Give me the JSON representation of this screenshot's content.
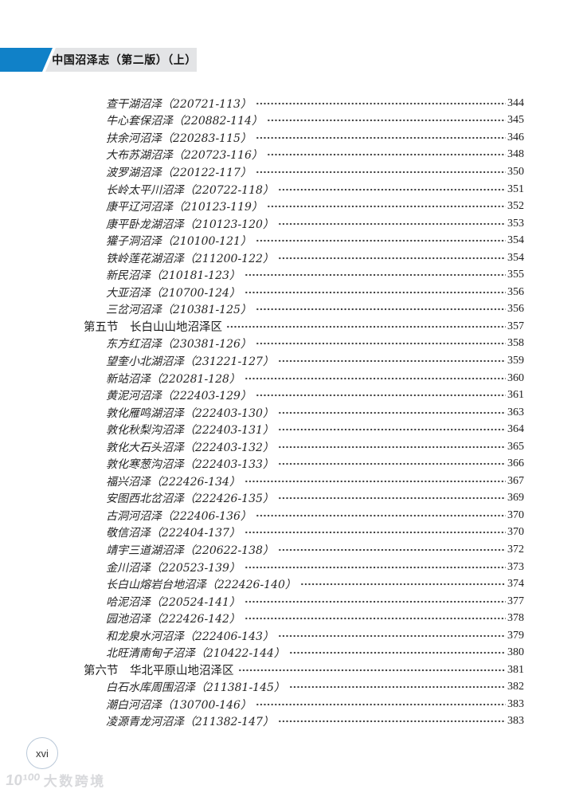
{
  "header": {
    "book_title": "中国沼泽志（第二版）（上）",
    "accent_color": "#1081c8",
    "bar_color": "#e3e4e6"
  },
  "toc_entries": [
    {
      "level": 2,
      "label": "查干湖沼泽（220721-113）",
      "page": "344"
    },
    {
      "level": 2,
      "label": "牛心套保沼泽（220882-114）",
      "page": "345"
    },
    {
      "level": 2,
      "label": "扶余河沼泽（220283-115）",
      "page": "346"
    },
    {
      "level": 2,
      "label": "大布苏湖沼泽（220723-116）",
      "page": "348"
    },
    {
      "level": 2,
      "label": "波罗湖沼泽（220122-117）",
      "page": "350"
    },
    {
      "level": 2,
      "label": "长岭太平川沼泽（220722-118）",
      "page": "351"
    },
    {
      "level": 2,
      "label": "康平辽河沼泽（210123-119）",
      "page": "352"
    },
    {
      "level": 2,
      "label": "康平卧龙湖沼泽（210123-120）",
      "page": "353"
    },
    {
      "level": 2,
      "label": "獾子洞沼泽（210100-121）",
      "page": "354"
    },
    {
      "level": 2,
      "label": "铁岭莲花湖沼泽（211200-122）",
      "page": "354"
    },
    {
      "level": 2,
      "label": "新民沼泽（210181-123）",
      "page": "355"
    },
    {
      "level": 2,
      "label": "大亚沼泽（210700-124）",
      "page": "356"
    },
    {
      "level": 2,
      "label": "三岔河沼泽（210381-125）",
      "page": "356"
    },
    {
      "level": 1,
      "label": "第五节　长白山山地沼泽区",
      "page": "357"
    },
    {
      "level": 2,
      "label": "东方红沼泽（230381-126）",
      "page": "358"
    },
    {
      "level": 2,
      "label": "望奎小北湖沼泽（231221-127）",
      "page": "359"
    },
    {
      "level": 2,
      "label": "新站沼泽（220281-128）",
      "page": "360"
    },
    {
      "level": 2,
      "label": "黄泥河沼泽（222403-129）",
      "page": "361"
    },
    {
      "level": 2,
      "label": "敦化雁鸣湖沼泽（222403-130）",
      "page": "363"
    },
    {
      "level": 2,
      "label": "敦化秋梨沟沼泽（222403-131）",
      "page": "364"
    },
    {
      "level": 2,
      "label": "敦化大石头沼泽（222403-132）",
      "page": "365"
    },
    {
      "level": 2,
      "label": "敦化寒葱沟沼泽（222403-133）",
      "page": "366"
    },
    {
      "level": 2,
      "label": "福兴沼泽（222426-134）",
      "page": "367"
    },
    {
      "level": 2,
      "label": "安图西北岔沼泽（222426-135）",
      "page": "369"
    },
    {
      "level": 2,
      "label": "古洞河沼泽（222406-136）",
      "page": "370"
    },
    {
      "level": 2,
      "label": "敬信沼泽（222404-137）",
      "page": "370"
    },
    {
      "level": 2,
      "label": "靖宇三道湖沼泽（220622-138）",
      "page": "372"
    },
    {
      "level": 2,
      "label": "金川沼泽（220523-139）",
      "page": "373"
    },
    {
      "level": 2,
      "label": "长白山熔岩台地沼泽（222426-140）",
      "page": "374"
    },
    {
      "level": 2,
      "label": "哈泥沼泽（220524-141）",
      "page": "377"
    },
    {
      "level": 2,
      "label": "园池沼泽（222426-142）",
      "page": "378"
    },
    {
      "level": 2,
      "label": "和龙泉水河沼泽（222406-143）",
      "page": "379"
    },
    {
      "level": 2,
      "label": "北旺清南甸子沼泽（210422-144）",
      "page": "380"
    },
    {
      "level": 1,
      "label": "第六节　华北平原山地沼泽区",
      "page": "381"
    },
    {
      "level": 2,
      "label": "白石水库周围沼泽（211381-145）",
      "page": "382"
    },
    {
      "level": 2,
      "label": "潮白河沼泽（130700-146）",
      "page": "383"
    },
    {
      "level": 2,
      "label": "凌源青龙河沼泽（211382-147）",
      "page": "383"
    }
  ],
  "footer": {
    "page_number": "xvi",
    "watermark_logo": "10¹⁰⁰",
    "watermark_text": "大数跨境"
  }
}
